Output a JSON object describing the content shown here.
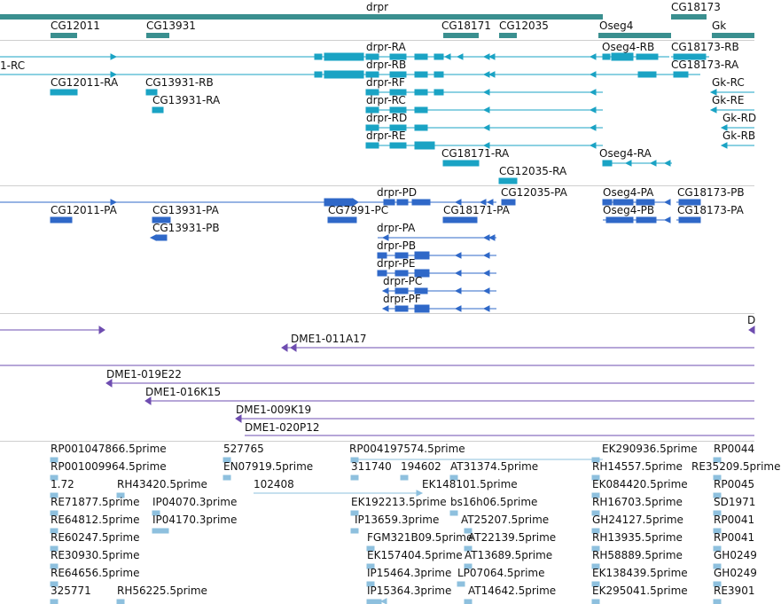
{
  "colors": {
    "gene": "#3a8f8f",
    "transcript": "#1aa3c4",
    "protein": "#2f68c8",
    "clone": "#6e4db0",
    "est": "#8ec0de",
    "separator": "#cfcfcf",
    "text": "#111111"
  },
  "tracks": {
    "genes": {
      "labels": [
        "drpr",
        "CG18173",
        "CG12011",
        "CG13931",
        "CG18171",
        "CG12035",
        "Oseg4",
        "Gk"
      ]
    },
    "transcripts": {
      "labels": [
        "drpr-RA",
        "Oseg4-RB",
        "CG18173-RB",
        "1-RC",
        "drpr-RB",
        "CG18173-RA",
        "CG12011-RA",
        "CG13931-RB",
        "drpr-RF",
        "Gk-RC",
        "CG13931-RA",
        "drpr-RC",
        "Gk-RE",
        "drpr-RD",
        "Gk-RD",
        "drpr-RE",
        "Gk-RB",
        "CG18171-RA",
        "Oseg4-RA",
        "CG12035-RA"
      ]
    },
    "proteins": {
      "labels": [
        "drpr-PD",
        "CG12035-PA",
        "Oseg4-PA",
        "CG18173-PB",
        "CG12011-PA",
        "CG13931-PA",
        "CG7991-PC",
        "CG18171-PA",
        "Oseg4-PB",
        "CG18173-PA",
        "CG13931-PB",
        "drpr-PA",
        "drpr-PB",
        "drpr-PE",
        "drpr-PC",
        "drpr-PF"
      ]
    },
    "clones": {
      "labels": [
        "D",
        "DME1-011A17",
        "DME1-019E22",
        "DME1-016K15",
        "DME1-009K19",
        "DME1-020P12"
      ]
    },
    "ests": {
      "labels": [
        "RP001047866.5prime",
        "527765",
        "RP004197574.5prime",
        "EK290936.5prime",
        "RP0044",
        "RP001009964.5prime",
        "EN07919.5prime",
        "311740",
        "194602",
        "AT31374.5prime",
        "RH14557.5prime",
        "RE35209.5prime",
        "1.72",
        "RH43420.5prime",
        "102408",
        "EK148101.5prime",
        "EK084420.5prime",
        "RP0045",
        "RE71877.5prime",
        "IP04070.3prime",
        "EK192213.5prime",
        "bs16h06.5prime",
        "RH16703.5prime",
        "SD1971",
        "RE64812.5prime",
        "IP04170.3prime",
        "IP13659.3prime",
        "AT25207.5prime",
        "GH24127.5prime",
        "RP0041",
        "RE60247.5prime",
        "FGM321B09.5prime",
        "AT22139.5prime",
        "RH13935.5prime",
        "RP0041",
        "RE30930.5prime",
        "EK157404.5prime",
        "AT13689.5prime",
        "RH58889.5prime",
        "GH0249",
        "RE64656.5prime",
        "IP15464.3prime",
        "LP07064.5prime",
        "EK138439.5prime",
        "GH0249",
        "325771",
        "RH56225.5prime",
        "IP15364.3prime",
        "AT14642.5prime",
        "EK295041.5prime",
        "RE3901"
      ]
    }
  }
}
